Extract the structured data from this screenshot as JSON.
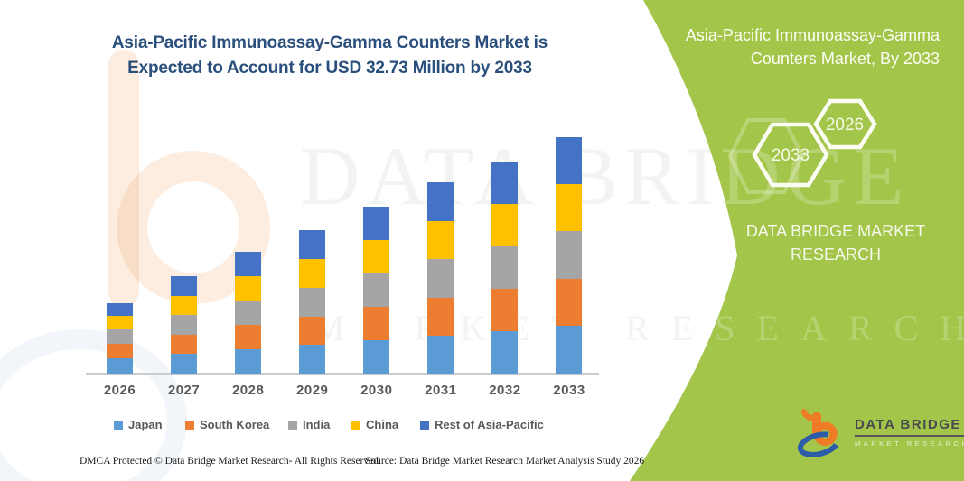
{
  "header": {
    "title": "Asia-Pacific Immunoassay-Gamma Counters Market is Expected to Account for USD 32.73 Million by 2033"
  },
  "side_panel": {
    "title": "Asia-Pacific Immunoassay-Gamma Counters Market, By 2033",
    "brand": "DATA BRIDGE MARKET RESEARCH",
    "accent_green": "#a3c64a",
    "hexagons": [
      {
        "label": "2033"
      },
      {
        "label": "2026"
      }
    ]
  },
  "watermark": {
    "line1": "DATA BRIDGE",
    "line2": "MARKET RESEARCH"
  },
  "chart_data": {
    "type": "bar",
    "stacked": true,
    "title": "Asia-Pacific Immunoassay-Gamma Counters Market, By 2033",
    "unit": "USD Million",
    "categories": [
      "2026",
      "2027",
      "2028",
      "2029",
      "2030",
      "2031",
      "2032",
      "2033"
    ],
    "series": [
      {
        "name": "Japan",
        "color": "#5B9BD5",
        "values": [
          2.1,
          2.7,
          3.4,
          4.0,
          4.6,
          5.2,
          5.9,
          6.6
        ]
      },
      {
        "name": "South Korea",
        "color": "#ED7D31",
        "values": [
          2.0,
          2.6,
          3.3,
          3.9,
          4.6,
          5.2,
          5.9,
          6.5
        ]
      },
      {
        "name": "India",
        "color": "#A5A5A5",
        "values": [
          2.0,
          2.7,
          3.3,
          4.0,
          4.6,
          5.3,
          5.9,
          6.6
        ]
      },
      {
        "name": "China",
        "color": "#FFC000",
        "values": [
          1.9,
          2.6,
          3.3,
          4.0,
          4.6,
          5.2,
          5.9,
          6.5
        ]
      },
      {
        "name": "Rest of Asia-Pacific",
        "color": "#4472C4",
        "values": [
          1.8,
          2.7,
          3.3,
          4.0,
          4.6,
          5.3,
          5.9,
          6.53
        ]
      }
    ],
    "totals": [
      9.8,
      13.3,
      16.6,
      19.9,
      23.0,
      26.2,
      29.5,
      32.73
    ],
    "ylim": [
      0,
      35
    ],
    "y_axis_visible": false,
    "grid": false,
    "legend_position": "bottom"
  },
  "footer": {
    "left": "DMCA Protected © Data Bridge Market Research-  All Rights Reserved.",
    "right": "Source: Data Bridge Market Research  Market Analysis Study 2026"
  },
  "logo": {
    "name": "DATA BRIDGE",
    "subtitle": "MARKET RESEARCH"
  }
}
